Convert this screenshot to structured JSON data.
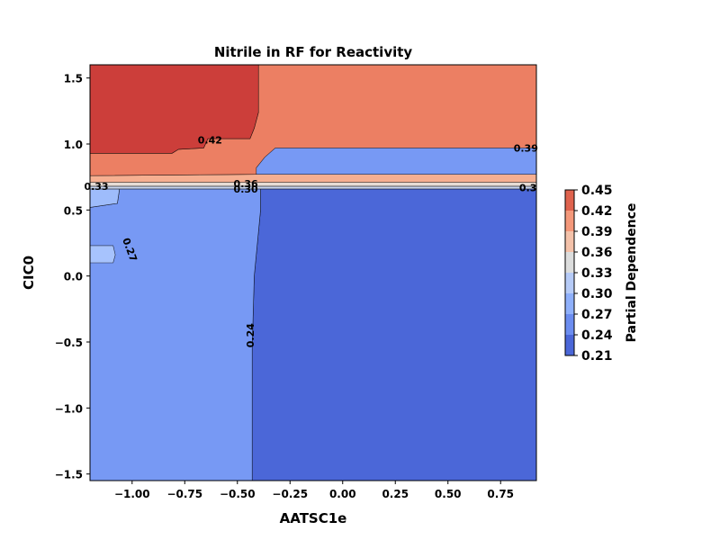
{
  "chart_data": {
    "type": "contour",
    "title": "Nitrile in RF for Reactivity",
    "xlabel": "AATSC1e",
    "ylabel": "CIC0",
    "xlim": [
      -1.2,
      0.92
    ],
    "ylim": [
      -1.55,
      1.6
    ],
    "x_ticks": [
      -1.0,
      -0.75,
      -0.5,
      -0.25,
      0.0,
      0.25,
      0.5,
      0.75
    ],
    "x_tick_labels": [
      "−1.00",
      "−0.75",
      "−0.50",
      "−0.25",
      "0.00",
      "0.25",
      "0.50",
      "0.75"
    ],
    "y_ticks": [
      -1.5,
      -1.0,
      -0.5,
      0.0,
      0.5,
      1.0,
      1.5
    ],
    "y_tick_labels": [
      "−1.5",
      "−1.0",
      "−0.5",
      "0.0",
      "0.5",
      "1.0",
      "1.5"
    ],
    "colorbar": {
      "label": "Partial Dependence",
      "levels": [
        0.21,
        0.24,
        0.27,
        0.3,
        0.33,
        0.36,
        0.39,
        0.42,
        0.45
      ],
      "tick_labels": [
        "0.21",
        "0.24",
        "0.27",
        "0.30",
        "0.33",
        "0.36",
        "0.39",
        "0.42",
        "0.45"
      ],
      "colors": [
        "#4b67d8",
        "#6c8df0",
        "#8fb0fb",
        "#b6cbf7",
        "#dcdddd",
        "#f4c2aa",
        "#f4987a",
        "#df634e",
        "#c53334"
      ]
    },
    "regions": [
      {
        "name": "low-right",
        "band": [
          0.21,
          0.24
        ],
        "color": "#4b67d8",
        "polygon": [
          [
            -0.43,
            -1.55
          ],
          [
            0.92,
            -1.55
          ],
          [
            0.92,
            0.66
          ],
          [
            -0.39,
            0.66
          ],
          [
            -0.39,
            0.5
          ],
          [
            -0.42,
            0.0
          ],
          [
            -0.43,
            -0.55
          ]
        ]
      },
      {
        "name": "low-left",
        "band": [
          0.24,
          0.27
        ],
        "color": "#7799f4",
        "polygon": [
          [
            -1.2,
            -1.55
          ],
          [
            -0.43,
            -1.55
          ],
          [
            -0.43,
            -0.55
          ],
          [
            -0.42,
            0.0
          ],
          [
            -0.39,
            0.5
          ],
          [
            -0.39,
            0.66
          ],
          [
            -1.06,
            0.66
          ],
          [
            -1.07,
            0.55
          ],
          [
            -1.2,
            0.52
          ]
        ]
      },
      {
        "name": "left-notch",
        "band": [
          0.27,
          0.3
        ],
        "color": "#9ebcfb",
        "polygon": [
          [
            -1.2,
            0.52
          ],
          [
            -1.07,
            0.55
          ],
          [
            -1.06,
            0.66
          ],
          [
            -1.2,
            0.66
          ]
        ]
      },
      {
        "name": "left-pocket",
        "band": [
          0.27,
          0.3
        ],
        "color": "#a7c3fd",
        "polygon": [
          [
            -1.2,
            0.1
          ],
          [
            -1.09,
            0.1
          ],
          [
            -1.08,
            0.16
          ],
          [
            -1.09,
            0.23
          ],
          [
            -1.2,
            0.23
          ]
        ]
      },
      {
        "name": "thin-30",
        "band": [
          0.3,
          0.33
        ],
        "color": "#c9d7f0",
        "polygon": [
          [
            -1.2,
            0.66
          ],
          [
            0.92,
            0.66
          ],
          [
            0.92,
            0.68
          ],
          [
            -1.2,
            0.68
          ]
        ]
      },
      {
        "name": "thin-33",
        "band": [
          0.33,
          0.36
        ],
        "color": "#e6dcd5",
        "polygon": [
          [
            -1.2,
            0.68
          ],
          [
            0.92,
            0.68
          ],
          [
            0.92,
            0.71
          ],
          [
            -1.2,
            0.71
          ]
        ]
      },
      {
        "name": "band-36",
        "band": [
          0.36,
          0.39
        ],
        "color": "#f6af91",
        "polygon": [
          [
            -1.2,
            0.71
          ],
          [
            0.92,
            0.71
          ],
          [
            0.92,
            0.77
          ],
          [
            -0.41,
            0.77
          ],
          [
            -1.2,
            0.76
          ]
        ]
      },
      {
        "name": "band-39",
        "band": [
          0.39,
          0.42
        ],
        "color": "#ec7f63",
        "polygon": [
          [
            -1.2,
            0.76
          ],
          [
            -0.41,
            0.77
          ],
          [
            -0.41,
            0.82
          ],
          [
            -0.37,
            0.9
          ],
          [
            -0.32,
            0.97
          ],
          [
            0.92,
            0.97
          ],
          [
            0.92,
            1.6
          ],
          [
            -0.4,
            1.6
          ],
          [
            -0.4,
            1.24
          ],
          [
            -0.42,
            1.12
          ],
          [
            -0.44,
            1.04
          ],
          [
            -0.64,
            1.04
          ],
          [
            -0.66,
            0.97
          ],
          [
            -0.78,
            0.96
          ],
          [
            -0.81,
            0.93
          ],
          [
            -1.2,
            0.93
          ]
        ]
      },
      {
        "name": "top-left",
        "band": [
          0.42,
          0.45
        ],
        "color": "#cc3e3a",
        "polygon": [
          [
            -1.2,
            0.93
          ],
          [
            -0.81,
            0.93
          ],
          [
            -0.78,
            0.96
          ],
          [
            -0.66,
            0.97
          ],
          [
            -0.64,
            1.04
          ],
          [
            -0.44,
            1.04
          ],
          [
            -0.42,
            1.12
          ],
          [
            -0.4,
            1.24
          ],
          [
            -0.4,
            1.6
          ],
          [
            -1.2,
            1.6
          ]
        ]
      }
    ],
    "contour_labels": [
      {
        "text": "0.42",
        "x": -0.63,
        "y": 1.03,
        "rotate": 0
      },
      {
        "text": "0.39",
        "x": 0.87,
        "y": 0.97,
        "rotate": 0
      },
      {
        "text": "0.33",
        "x": -1.17,
        "y": 0.68,
        "rotate": 0
      },
      {
        "text": "0.36",
        "x": -0.46,
        "y": 0.7,
        "rotate": 0
      },
      {
        "text": "0.30",
        "x": -0.46,
        "y": 0.66,
        "rotate": 0
      },
      {
        "text": "0.3",
        "x": 0.88,
        "y": 0.67,
        "rotate": 0
      },
      {
        "text": "0.27",
        "x": -1.01,
        "y": 0.2,
        "rotate": 70
      },
      {
        "text": "0.24",
        "x": -0.44,
        "y": -0.45,
        "rotate": -90
      }
    ]
  }
}
